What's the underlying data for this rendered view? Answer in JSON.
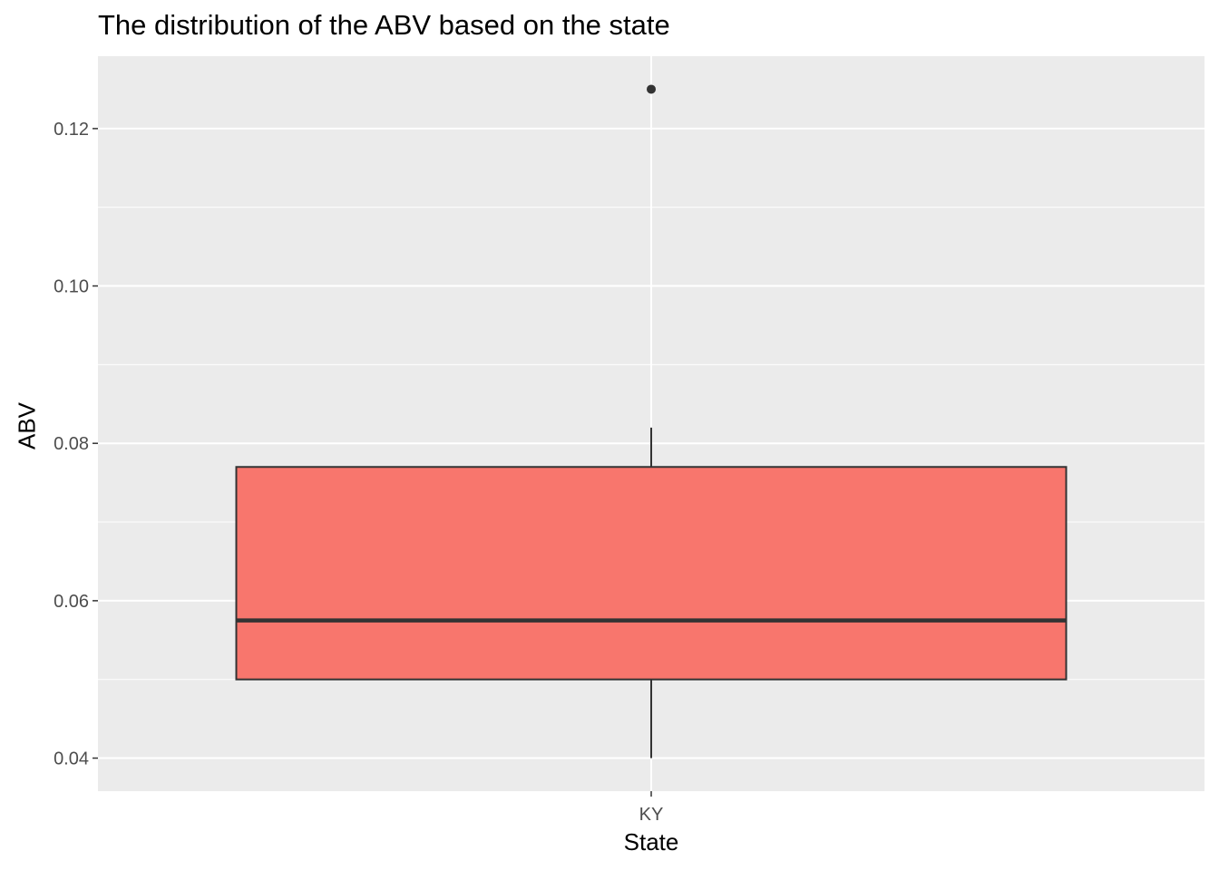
{
  "chart_data": {
    "type": "boxplot",
    "title": "The distribution of the ABV based on the state",
    "xlabel": "State",
    "ylabel": "ABV",
    "categories": [
      "KY"
    ],
    "boxes": [
      {
        "category": "KY",
        "min": 0.04,
        "q1": 0.05,
        "median": 0.0575,
        "q3": 0.077,
        "max": 0.082,
        "outliers": [
          0.125
        ]
      }
    ],
    "ylim": [
      0.0358,
      0.1292
    ],
    "yticks": [
      0.04,
      0.06,
      0.08,
      0.1,
      0.12
    ],
    "ytick_labels": [
      "0.04",
      "0.06",
      "0.08",
      "0.10",
      "0.12"
    ],
    "grid": true,
    "legend": "none",
    "colors": {
      "fill": "#F8766D",
      "panel": "#EBEBEB",
      "grid": "#FFFFFF",
      "box_line": "#333333",
      "tick_text": "#4D4D4D"
    }
  }
}
